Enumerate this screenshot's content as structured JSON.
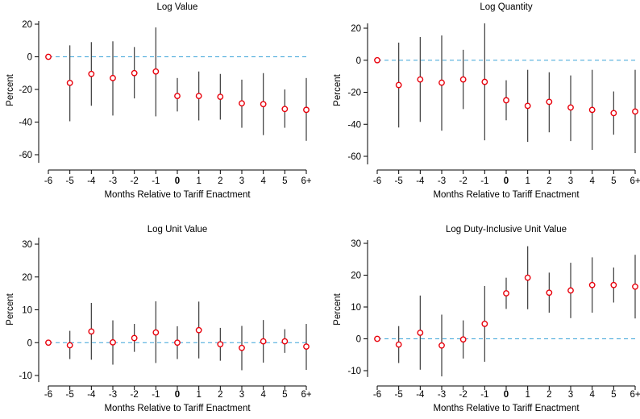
{
  "colors": {
    "point": "#e8000b",
    "ci_line": "#3a3a3a",
    "zero_line": "#3ba4d8",
    "axis": "#000000"
  },
  "chart_data": [
    {
      "type": "scatter",
      "title": "Log Value",
      "xlabel": "Months Relative to Tariff Enactment",
      "ylabel": "Percent",
      "categories": [
        "-6",
        "-5",
        "-4",
        "-3",
        "-2",
        "-1",
        "0",
        "1",
        "2",
        "3",
        "4",
        "5",
        "6+"
      ],
      "bold_category": "0",
      "values": [
        0,
        -16,
        -10.5,
        -13,
        -10,
        -9,
        -24,
        -24,
        -24.5,
        -28.5,
        -29,
        -32,
        -32.5
      ],
      "ci_low": [
        0,
        -39.5,
        -30,
        -36,
        -25.5,
        -36.5,
        -33.5,
        -39,
        -38.5,
        -43.5,
        -48,
        -43.5,
        -51.5
      ],
      "ci_high": [
        0,
        7,
        9,
        9.5,
        6,
        18,
        -13,
        -9,
        -10.5,
        -14,
        -10,
        -20,
        -13
      ],
      "yticks": [
        20,
        0,
        -20,
        -40,
        -60
      ],
      "ylim": [
        -65,
        22
      ],
      "reference_line_y": 0
    },
    {
      "type": "scatter",
      "title": "Log Quantity",
      "xlabel": "Months Relative to Tariff Enactment",
      "ylabel": "Percent",
      "categories": [
        "-6",
        "-5",
        "-4",
        "-3",
        "-2",
        "-1",
        "0",
        "1",
        "2",
        "3",
        "4",
        "5",
        "6+"
      ],
      "bold_category": "0",
      "values": [
        0,
        -15.5,
        -12,
        -14,
        -12,
        -13.5,
        -25,
        -28.5,
        -26,
        -29.5,
        -31,
        -33,
        -32
      ],
      "ci_low": [
        0,
        -42,
        -38.5,
        -44,
        -30.5,
        -50,
        -37.5,
        -51,
        -45,
        -50.5,
        -56,
        -46.5,
        -58
      ],
      "ci_high": [
        0,
        11,
        14.5,
        15.5,
        6.5,
        23,
        -12.5,
        -6,
        -7.5,
        -9.5,
        -6,
        -19.5,
        -6
      ],
      "yticks": [
        20,
        0,
        -20,
        -40,
        -60
      ],
      "ylim": [
        -65,
        23
      ],
      "reference_line_y": 0
    },
    {
      "type": "scatter",
      "title": "Log Unit Value",
      "xlabel": "Months Relative to Tariff Enactment",
      "ylabel": "Percent",
      "categories": [
        "-6",
        "-5",
        "-4",
        "-3",
        "-2",
        "-1",
        "0",
        "1",
        "2",
        "3",
        "4",
        "5",
        "6+"
      ],
      "bold_category": "0",
      "values": [
        0,
        -0.8,
        3.4,
        0.1,
        1.4,
        3.1,
        0,
        3.8,
        -0.5,
        -1.6,
        0.4,
        0.4,
        -1.2
      ],
      "ci_low": [
        0,
        -5,
        -5.2,
        -6.7,
        -2.8,
        -6.2,
        -5,
        -4.8,
        -5.5,
        -8.4,
        -6.1,
        -3.1,
        -8.3
      ],
      "ci_high": [
        0,
        3.6,
        12.1,
        6.8,
        5.7,
        12.6,
        5,
        12.5,
        4.5,
        5.1,
        6.9,
        4.1,
        5.7
      ],
      "yticks": [
        30,
        20,
        10,
        0,
        -10
      ],
      "ylim": [
        -12,
        32
      ],
      "reference_line_y": 0
    },
    {
      "type": "scatter",
      "title": "Log Duty-Inclusive Unit Value",
      "xlabel": "Months Relative to Tariff Enactment",
      "ylabel": "Percent",
      "categories": [
        "-6",
        "-5",
        "-4",
        "-3",
        "-2",
        "-1",
        "0",
        "1",
        "2",
        "3",
        "4",
        "5",
        "6+"
      ],
      "bold_category": "0",
      "values": [
        0,
        -1.8,
        1.9,
        -2.1,
        -0.2,
        4.7,
        14.3,
        19.2,
        14.5,
        15.2,
        16.9,
        16.9,
        16.4
      ],
      "ci_low": [
        0,
        -7.6,
        -9.7,
        -11.8,
        -6.2,
        -7.2,
        9.4,
        9.3,
        8.2,
        6.5,
        8.2,
        11.4,
        6.4
      ],
      "ci_high": [
        0,
        4,
        13.6,
        7.6,
        5.8,
        16.6,
        19.2,
        29.1,
        20.8,
        23.9,
        25.6,
        22.4,
        26.4
      ],
      "yticks": [
        30,
        20,
        10,
        0,
        -10
      ],
      "ylim": [
        -12,
        31
      ],
      "reference_line_y": 0
    }
  ]
}
